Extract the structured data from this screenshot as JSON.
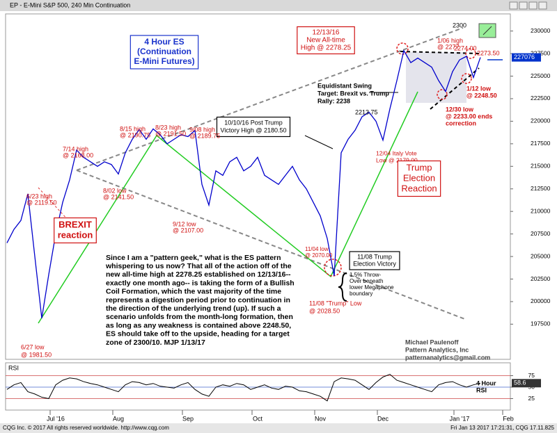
{
  "header": {
    "title": "EP - E-Mini S&P 500, 240 Min Continuation"
  },
  "footer": {
    "left": "CQG Inc. © 2017 All rights reserved worldwide. http://www.cqg.com",
    "right": "Fri Jan 13 2017 17:21:31, CQG 17.11.825"
  },
  "chart_data": [
    {
      "type": "line",
      "categories": [
        null,
        null,
        null,
        null,
        null,
        null,
        null,
        "Jul '16",
        null,
        null,
        null,
        null,
        null,
        null,
        null,
        null,
        "Aug",
        null,
        null,
        null,
        null,
        null,
        null,
        null,
        null,
        null,
        "Sep",
        null,
        null,
        null,
        null,
        null,
        null,
        null,
        null,
        null,
        "Oct",
        null,
        null,
        null,
        null,
        null,
        null,
        null,
        null,
        "Nov",
        null,
        null,
        null,
        null,
        null,
        null,
        null,
        null,
        "Dec",
        null,
        null,
        null,
        null,
        null,
        null,
        null,
        null,
        null,
        null,
        "Jan '17",
        null,
        null,
        null,
        null,
        null,
        null,
        "Feb",
        null
      ],
      "series": [
        {
          "color": "#0000cc",
          "values": [
            206500,
            208000,
            209000,
            211950,
            205000,
            198150,
            203000,
            207500,
            211000,
            213500,
            216800,
            216000,
            215500,
            215000,
            215500,
            215200,
            214150,
            216500,
            218000,
            219075,
            218000,
            219150,
            218500,
            217500,
            218000,
            218500,
            218300,
            218975,
            213000,
            210700,
            214500,
            214000,
            215500,
            216000,
            214500,
            215000,
            216000,
            214000,
            213500,
            213000,
            214000,
            215000,
            213500,
            212500,
            211000,
            209500,
            207000,
            202850,
            216500,
            218000,
            219000,
            220500,
            221000,
            220000,
            217900,
            221375,
            224500,
            227825,
            226500,
            227000,
            226500,
            226000,
            224500,
            223300,
            225500,
            226800,
            227200,
            224850,
            227076,
            null,
            null,
            null,
            null,
            null
          ]
        }
      ],
      "ylim": [
        193600,
        231900
      ],
      "yticks": [
        197500,
        200000,
        202500,
        205000,
        207500,
        210000,
        212500,
        215000,
        217500,
        220000,
        222500,
        225000,
        227500,
        230000
      ],
      "grid": false
    },
    {
      "type": "line",
      "title": "RSI",
      "series": [
        {
          "color": "#000000",
          "values": [
            45,
            55,
            60,
            40,
            35,
            28,
            25,
            55,
            65,
            70,
            68,
            62,
            58,
            55,
            50,
            45,
            40,
            55,
            62,
            60,
            55,
            58,
            52,
            50,
            48,
            55,
            60,
            45,
            35,
            30,
            50,
            55,
            52,
            58,
            55,
            45,
            50,
            55,
            48,
            45,
            52,
            50,
            42,
            40,
            35,
            30,
            20,
            62,
            70,
            68,
            65,
            55,
            45,
            60,
            72,
            78,
            65,
            60,
            55,
            50,
            45,
            40,
            55,
            60,
            62,
            55,
            50,
            55,
            58.6,
            null,
            null,
            null,
            null,
            null
          ]
        }
      ],
      "ylim": [
        0,
        100
      ],
      "yticks": [
        25,
        50,
        75
      ],
      "grid": true,
      "label": [
        "4 Hour",
        "RSI"
      ]
    }
  ],
  "annotations": [
    {
      "text": [
        "4 Hour ES",
        "(Continuation",
        "E-Mini Futures)"
      ]
    },
    {
      "text": [
        "12/13/16",
        "New All-time",
        "High @ 2278.25"
      ]
    },
    {
      "text": [
        "1/06 high",
        "@ 2277"
      ]
    },
    {
      "text": [
        "2274.00"
      ]
    },
    {
      "text": [
        "2273.50"
      ]
    },
    {
      "text": [
        "2300"
      ]
    },
    {
      "text": [
        "Equidistant Swing",
        "Target: Brexit vs. Trump",
        "Rally: 2238"
      ]
    },
    {
      "text": [
        "1/12 low",
        "@ 2248.50"
      ]
    },
    {
      "text": [
        "12/30 low",
        "@ 2233.00 ends",
        "correction"
      ]
    },
    {
      "text": [
        "2213.75"
      ]
    },
    {
      "text": [
        "10/10/16 Post Trump",
        "Victory High @ 2180.50"
      ]
    },
    {
      "text": [
        "12/04 Italy Vote",
        "Low @ 2179.00"
      ]
    },
    {
      "text": [
        "Trump",
        "Election",
        "Reaction"
      ]
    },
    {
      "text": [
        "8/15 high",
        "@ 2190.75"
      ]
    },
    {
      "text": [
        "8/23 high",
        "@ 2191.50"
      ]
    },
    {
      "text": [
        "9/08 high",
        "@ 2189.75"
      ]
    },
    {
      "text": [
        "7/14 high",
        "@ 2168.00"
      ]
    },
    {
      "text": [
        "6/23 high",
        "@ 2119.50"
      ]
    },
    {
      "text": [
        "8/02 low",
        "@ 2141.50"
      ]
    },
    {
      "text": [
        "BREXIT",
        "reaction"
      ]
    },
    {
      "text": [
        "9/12 low",
        "@ 2107.00"
      ]
    },
    {
      "text": [
        "11/04 low",
        "@ 2070.00"
      ]
    },
    {
      "text": [
        "11/08 Trump",
        "Election Victory"
      ]
    },
    {
      "text": [
        "1.5% Throw-",
        "Over beneath",
        "lower Megaphone",
        "boundary"
      ]
    },
    {
      "text": [
        "11/08 \"Trump\" Low",
        "@ 2028.50"
      ]
    },
    {
      "text": [
        "Since I am a \"pattern geek,\" what is the ES pattern",
        "whispering to us now? That all of the action off of the",
        "new all-time high at 2278.25 established on 12/13/16--",
        "exactly one month ago-- is taking the form of a Bullish",
        "Coil Formation, which the vast majority of the time",
        "represents a digestion period prior to continuation in",
        "the direction of the underlying trend (up). If such a",
        "scenario unfolds from the month-long formation, then",
        "as long as any weakness is contained above 2248.50,",
        "ES should take off to the upside, heading for a target",
        "zone of 2300/10. MJP 1/13/17"
      ]
    },
    {
      "text": [
        "6/27 low",
        "@ 1981.50"
      ]
    },
    {
      "text": [
        "Michael Paulenoff",
        "Pattern Analytics, Inc",
        "patternanalytics@gmail.com"
      ]
    }
  ]
}
